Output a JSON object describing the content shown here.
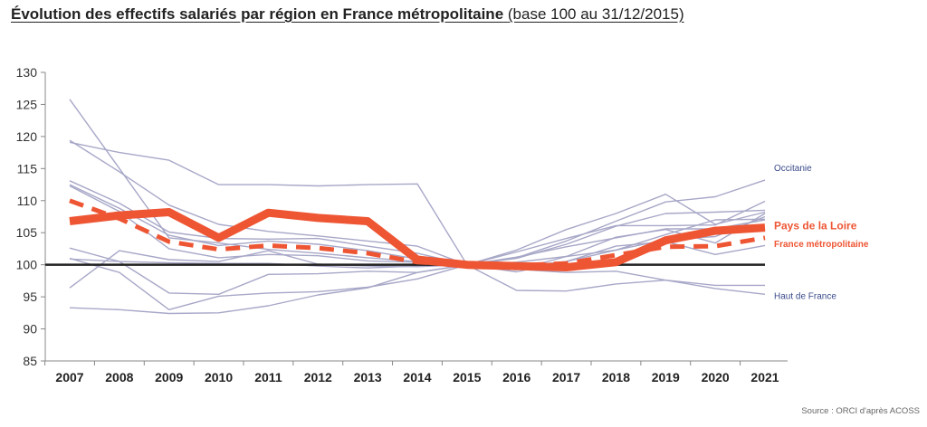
{
  "title": "Évolution des effectifs salariés par région en France métropolitaine",
  "subtitle": "(base 100 au 31/12/2015)",
  "source": "Source : ORCI d'après ACOSS",
  "colors": {
    "highlight": "#ee5533",
    "other_regions": "#a7a7c8",
    "label_blue": "#3a4a8a",
    "baseline": "#222222",
    "axis": "#888888"
  },
  "chart_data": {
    "type": "line",
    "x": [
      2007,
      2008,
      2009,
      2010,
      2011,
      2012,
      2013,
      2014,
      2015,
      2016,
      2017,
      2018,
      2019,
      2020,
      2021
    ],
    "ylim": [
      85,
      130
    ],
    "yticks": [
      85,
      90,
      95,
      100,
      105,
      110,
      115,
      120,
      125,
      130
    ],
    "reference_line": 100,
    "grid": false,
    "series": [
      {
        "name": "Pays de la Loire",
        "style": "thick-solid",
        "values": [
          106.8,
          107.7,
          108.2,
          104.2,
          108.1,
          107.3,
          106.8,
          100.8,
          100.0,
          99.8,
          99.6,
          100.4,
          103.8,
          105.3,
          105.8
        ]
      },
      {
        "name": "France métropolitaine",
        "style": "thick-dashed",
        "values": [
          110.0,
          107.2,
          103.6,
          102.4,
          103.0,
          102.6,
          101.8,
          100.4,
          100.0,
          99.9,
          100.2,
          101.5,
          102.8,
          102.9,
          104.2
        ]
      },
      {
        "name": "Occitanie",
        "style": "thin",
        "values": [
          112.5,
          108.8,
          104.6,
          103.0,
          103.7,
          103.2,
          102.2,
          100.9,
          100.0,
          101.1,
          103.7,
          106.8,
          109.8,
          110.6,
          113.2
        ]
      },
      {
        "name": "Haut de France",
        "style": "thin",
        "values": [
          93.3,
          93.0,
          92.4,
          92.5,
          93.6,
          95.3,
          96.4,
          98.8,
          100.0,
          99.3,
          98.8,
          99.0,
          97.6,
          96.3,
          95.4
        ]
      },
      {
        "name": "",
        "style": "thin",
        "values": [
          125.8,
          115.0,
          104.2,
          103.4,
          102.4,
          101.8,
          101.1,
          100.5,
          100.0,
          102.3,
          105.5,
          108.0,
          111.0,
          106.3,
          108.2
        ]
      },
      {
        "name": "",
        "style": "thin",
        "values": [
          119.1,
          117.5,
          116.3,
          112.5,
          112.5,
          112.3,
          112.5,
          112.6,
          100.0,
          101.0,
          103.2,
          106.0,
          108.0,
          108.2,
          108.5
        ]
      },
      {
        "name": "",
        "style": "thin",
        "values": [
          119.4,
          114.5,
          109.3,
          106.3,
          105.2,
          104.5,
          103.7,
          102.9,
          100.0,
          101.2,
          102.8,
          104.2,
          105.6,
          105.6,
          107.0
        ]
      },
      {
        "name": "",
        "style": "thin",
        "values": [
          113.1,
          109.6,
          105.1,
          104.1,
          104.0,
          104.1,
          102.9,
          101.8,
          100.0,
          100.4,
          101.3,
          102.3,
          103.9,
          104.4,
          107.5
        ]
      },
      {
        "name": "",
        "style": "thin",
        "values": [
          112.3,
          108.3,
          102.5,
          101.1,
          101.6,
          101.4,
          100.6,
          100.4,
          100.0,
          98.9,
          100.5,
          102.3,
          104.7,
          107.0,
          107.1
        ]
      },
      {
        "name": "",
        "style": "thin",
        "values": [
          102.6,
          100.5,
          95.6,
          95.4,
          98.5,
          98.6,
          99.0,
          98.8,
          100.0,
          99.2,
          101.3,
          104.3,
          105.5,
          103.4,
          108.0
        ]
      },
      {
        "name": "",
        "style": "thin",
        "values": [
          101.0,
          98.8,
          93.0,
          95.1,
          95.6,
          95.8,
          96.5,
          97.8,
          100.0,
          96.0,
          95.9,
          97.0,
          97.6,
          96.8,
          96.8
        ]
      },
      {
        "name": "",
        "style": "thin",
        "values": [
          96.4,
          102.2,
          100.8,
          100.5,
          102.2,
          100.1,
          99.8,
          99.7,
          100.0,
          99.7,
          100.5,
          102.9,
          103.6,
          101.6,
          103.0
        ]
      },
      {
        "name": "",
        "style": "thin",
        "values": [
          100.9,
          100.5,
          100.3,
          100.2,
          100.2,
          99.8,
          99.5,
          99.8,
          100.0,
          102.0,
          104.1,
          106.1,
          106.1,
          106.2,
          109.9
        ]
      }
    ],
    "labels": [
      {
        "text": "Occitanie",
        "series": "Occitanie",
        "color": "blue"
      },
      {
        "text": "Pays de la Loire",
        "series": "Pays de la Loire",
        "color": "highlight",
        "bold": true
      },
      {
        "text": "France métropolitaine",
        "series": "France métropolitaine",
        "color": "highlight",
        "bold": true
      },
      {
        "text": "Haut de France",
        "series": "Haut de France",
        "color": "blue"
      }
    ]
  }
}
